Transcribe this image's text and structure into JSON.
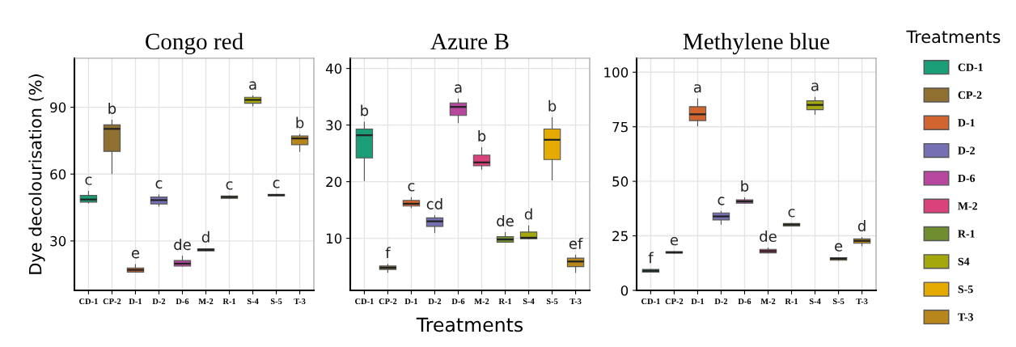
{
  "chart_data": [
    {
      "type": "box",
      "title": "Congo red",
      "ylabel": "Dye decolourisation (%)",
      "categories": [
        "CD-1",
        "CP-2",
        "D-1",
        "D-2",
        "D-6",
        "M-2",
        "R-1",
        "S-4",
        "S-5",
        "T-3"
      ],
      "ylim": [
        7.8,
        112
      ],
      "yticks": [
        30,
        60,
        90
      ],
      "grid": true,
      "legend": false,
      "series": [
        {
          "color": "#1b9e77",
          "boxes": [
            {
              "low": 47,
              "q1": 47.4,
              "median": 48.6,
              "q3": 50.4,
              "high": 52.3
            },
            null,
            null,
            null,
            null,
            null,
            null,
            null,
            null,
            null
          ],
          "value_labels": [
            "c",
            null,
            null,
            null,
            null,
            null,
            null,
            null,
            null,
            null
          ]
        },
        {
          "color": "#8f7030",
          "boxes": [
            null,
            {
              "low": 60.2,
              "q1": 70.2,
              "median": 80.3,
              "q3": 82.1,
              "high": 84.2
            },
            null,
            null,
            null,
            null,
            null,
            null,
            null,
            null
          ],
          "value_labels": [
            null,
            "b",
            null,
            null,
            null,
            null,
            null,
            null,
            null,
            null
          ]
        },
        {
          "color": "#d2652f",
          "boxes": [
            null,
            null,
            {
              "low": 16,
              "q1": 16,
              "median": 17,
              "q3": 17.9,
              "high": 19.4
            },
            null,
            null,
            null,
            null,
            null,
            null,
            null
          ],
          "value_labels": [
            null,
            null,
            "e",
            null,
            null,
            null,
            null,
            null,
            null,
            null
          ]
        },
        {
          "color": "#7570b3",
          "boxes": [
            null,
            null,
            null,
            {
              "low": 45.6,
              "q1": 46.6,
              "median": 48.3,
              "q3": 49.7,
              "high": 50.7
            },
            null,
            null,
            null,
            null,
            null,
            null
          ],
          "value_labels": [
            null,
            null,
            null,
            "c",
            null,
            null,
            null,
            null,
            null,
            null
          ]
        },
        {
          "color": "#b7469e",
          "boxes": [
            null,
            null,
            null,
            null,
            {
              "low": 18.7,
              "q1": 18.7,
              "median": 19.8,
              "q3": 21.2,
              "high": 23.1
            },
            null,
            null,
            null,
            null,
            null
          ],
          "value_labels": [
            null,
            null,
            null,
            null,
            "de",
            null,
            null,
            null,
            null,
            null
          ]
        },
        {
          "color": "#d9427a",
          "boxes": [
            null,
            null,
            null,
            null,
            null,
            {
              "low": 25.5,
              "q1": 25.5,
              "median": 26,
              "q3": 26.5,
              "high": 26.5
            },
            null,
            null,
            null,
            null
          ],
          "value_labels": [
            null,
            null,
            null,
            null,
            null,
            "d",
            null,
            null,
            null,
            null
          ]
        },
        {
          "color": "#6f8e30",
          "boxes": [
            null,
            null,
            null,
            null,
            null,
            null,
            {
              "low": 49.1,
              "q1": 49.1,
              "median": 49.7,
              "q3": 50.2,
              "high": 50.2
            },
            null,
            null,
            null
          ],
          "value_labels": [
            null,
            null,
            null,
            null,
            null,
            null,
            "c",
            null,
            null,
            null
          ]
        },
        {
          "color": "#a5a80c",
          "boxes": [
            null,
            null,
            null,
            null,
            null,
            null,
            null,
            {
              "low": 90.6,
              "q1": 91.8,
              "median": 93.3,
              "q3": 94.5,
              "high": 95.1
            },
            null,
            null
          ],
          "value_labels": [
            null,
            null,
            null,
            null,
            null,
            null,
            null,
            "a",
            null,
            null
          ]
        },
        {
          "color": "#e6ab02",
          "boxes": [
            null,
            null,
            null,
            null,
            null,
            null,
            null,
            null,
            {
              "low": 50.2,
              "q1": 50.2,
              "median": 50.6,
              "q3": 50.9,
              "high": 50.9
            },
            null
          ],
          "value_labels": [
            null,
            null,
            null,
            null,
            null,
            null,
            null,
            null,
            "c",
            null
          ]
        },
        {
          "color": "#b8861b",
          "boxes": [
            null,
            null,
            null,
            null,
            null,
            null,
            null,
            null,
            null,
            {
              "low": 70.2,
              "q1": 73.2,
              "median": 76,
              "q3": 77.1,
              "high": 77.8
            }
          ],
          "value_labels": [
            null,
            null,
            null,
            null,
            null,
            null,
            null,
            null,
            null,
            "b"
          ]
        }
      ]
    },
    {
      "type": "box",
      "title": "Azure B",
      "xlabel": "Treatments",
      "categories": [
        "CD-1",
        "CP-2",
        "D-1",
        "D-2",
        "D-6",
        "M-2",
        "R-1",
        "S-4",
        "S-5",
        "T-3"
      ],
      "ylim": [
        0.8,
        41.8
      ],
      "yticks": [
        10,
        20,
        30,
        40
      ],
      "grid": true,
      "legend": false,
      "series": [
        {
          "color": "#1b9e77",
          "boxes": [
            {
              "low": 20.2,
              "q1": 24.2,
              "median": 28.2,
              "q3": 29.3,
              "high": 30.5
            },
            null,
            null,
            null,
            null,
            null,
            null,
            null,
            null,
            null
          ],
          "value_labels": [
            "b",
            null,
            null,
            null,
            null,
            null,
            null,
            null,
            null,
            null
          ]
        },
        {
          "color": "#8f7030",
          "boxes": [
            null,
            {
              "low": 4,
              "q1": 4.5,
              "median": 4.8,
              "q3": 5.1,
              "high": 5.4
            },
            null,
            null,
            null,
            null,
            null,
            null,
            null,
            null
          ],
          "value_labels": [
            null,
            "f",
            null,
            null,
            null,
            null,
            null,
            null,
            null,
            null
          ]
        },
        {
          "color": "#d2652f",
          "boxes": [
            null,
            null,
            {
              "low": 15.4,
              "q1": 15.7,
              "median": 16.1,
              "q3": 16.7,
              "high": 17.2
            },
            null,
            null,
            null,
            null,
            null,
            null,
            null
          ],
          "value_labels": [
            null,
            null,
            "c",
            null,
            null,
            null,
            null,
            null,
            null,
            null
          ]
        },
        {
          "color": "#7570b3",
          "boxes": [
            null,
            null,
            null,
            {
              "low": 11,
              "q1": 12.1,
              "median": 13,
              "q3": 13.6,
              "high": 14
            },
            null,
            null,
            null,
            null,
            null,
            null
          ],
          "value_labels": [
            null,
            null,
            null,
            "cd",
            null,
            null,
            null,
            null,
            null,
            null
          ]
        },
        {
          "color": "#b7469e",
          "boxes": [
            null,
            null,
            null,
            null,
            {
              "low": 30.4,
              "q1": 31.7,
              "median": 33.2,
              "q3": 33.9,
              "high": 34.6
            },
            null,
            null,
            null,
            null,
            null
          ],
          "value_labels": [
            null,
            null,
            null,
            null,
            "a",
            null,
            null,
            null,
            null,
            null
          ]
        },
        {
          "color": "#d9427a",
          "boxes": [
            null,
            null,
            null,
            null,
            null,
            {
              "low": 22.2,
              "q1": 22.8,
              "median": 23.4,
              "q3": 24.7,
              "high": 26
            },
            null,
            null,
            null,
            null
          ],
          "value_labels": [
            null,
            null,
            null,
            null,
            null,
            "b",
            null,
            null,
            null,
            null
          ]
        },
        {
          "color": "#6f8e30",
          "boxes": [
            null,
            null,
            null,
            null,
            null,
            null,
            {
              "low": 9.3,
              "q1": 9.3,
              "median": 9.8,
              "q3": 10.3,
              "high": 11
            },
            null,
            null,
            null
          ],
          "value_labels": [
            null,
            null,
            null,
            null,
            null,
            null,
            "de",
            null,
            null,
            null
          ]
        },
        {
          "color": "#a5a80c",
          "boxes": [
            null,
            null,
            null,
            null,
            null,
            null,
            null,
            {
              "low": 9.9,
              "q1": 9.9,
              "median": 10.1,
              "q3": 11.1,
              "high": 12.2
            },
            null,
            null
          ],
          "value_labels": [
            null,
            null,
            null,
            null,
            null,
            null,
            null,
            "d",
            null,
            null
          ]
        },
        {
          "color": "#e6ab02",
          "boxes": [
            null,
            null,
            null,
            null,
            null,
            null,
            null,
            null,
            {
              "low": 20.3,
              "q1": 23.9,
              "median": 27.4,
              "q3": 29.3,
              "high": 31.3
            },
            null
          ],
          "value_labels": [
            null,
            null,
            null,
            null,
            null,
            null,
            null,
            null,
            "b",
            null
          ]
        },
        {
          "color": "#b8861b",
          "boxes": [
            null,
            null,
            null,
            null,
            null,
            null,
            null,
            null,
            null,
            {
              "low": 4,
              "q1": 5,
              "median": 5.9,
              "q3": 6.5,
              "high": 7
            }
          ],
          "value_labels": [
            null,
            null,
            null,
            null,
            null,
            null,
            null,
            null,
            null,
            "ef"
          ]
        }
      ]
    },
    {
      "type": "box",
      "title": "Methylene blue",
      "legend_title": "Treatments",
      "categories": [
        "CD-1",
        "CP-2",
        "D-1",
        "D-2",
        "D-6",
        "M-2",
        "R-1",
        "S-4",
        "S-5",
        "T-3"
      ],
      "ylim": [
        0,
        106.4
      ],
      "yticks": [
        0,
        25,
        50,
        75,
        100
      ],
      "grid": true,
      "legend": "right",
      "series": [
        {
          "name": "CD-1",
          "color": "#1b9e77",
          "boxes": [
            {
              "low": 8.4,
              "q1": 8.4,
              "median": 9,
              "q3": 9.6,
              "high": 9.6
            },
            null,
            null,
            null,
            null,
            null,
            null,
            null,
            null,
            null
          ],
          "value_labels": [
            "f",
            null,
            null,
            null,
            null,
            null,
            null,
            null,
            null,
            null
          ]
        },
        {
          "name": "CP-2",
          "color": "#8f7030",
          "boxes": [
            null,
            {
              "low": 17.1,
              "q1": 17.1,
              "median": 17.4,
              "q3": 17.8,
              "high": 17.8
            },
            null,
            null,
            null,
            null,
            null,
            null,
            null,
            null
          ],
          "value_labels": [
            null,
            "e",
            null,
            null,
            null,
            null,
            null,
            null,
            null,
            null
          ]
        },
        {
          "name": "D-1",
          "color": "#d2652f",
          "boxes": [
            null,
            null,
            {
              "low": 75.4,
              "q1": 77.8,
              "median": 80.7,
              "q3": 84.2,
              "high": 87.8
            },
            null,
            null,
            null,
            null,
            null,
            null,
            null
          ],
          "value_labels": [
            null,
            null,
            "a",
            null,
            null,
            null,
            null,
            null,
            null,
            null
          ]
        },
        {
          "name": "D-2",
          "color": "#7570b3",
          "boxes": [
            null,
            null,
            null,
            {
              "low": 30.3,
              "q1": 32.3,
              "median": 33.9,
              "q3": 35.5,
              "high": 36.2
            },
            null,
            null,
            null,
            null,
            null,
            null
          ],
          "value_labels": [
            null,
            null,
            null,
            "c",
            null,
            null,
            null,
            null,
            null,
            null
          ]
        },
        {
          "name": "D-6",
          "color": "#b7469e",
          "boxes": [
            null,
            null,
            null,
            null,
            {
              "low": 40,
              "q1": 40,
              "median": 40.8,
              "q3": 41.5,
              "high": 42.4
            },
            null,
            null,
            null,
            null,
            null
          ],
          "value_labels": [
            null,
            null,
            null,
            null,
            "b",
            null,
            null,
            null,
            null,
            null
          ]
        },
        {
          "name": "M-2",
          "color": "#d9427a",
          "boxes": [
            null,
            null,
            null,
            null,
            null,
            {
              "low": 17.2,
              "q1": 17.2,
              "median": 18,
              "q3": 18.8,
              "high": 19.4
            },
            null,
            null,
            null,
            null
          ],
          "value_labels": [
            null,
            null,
            null,
            null,
            null,
            "de",
            null,
            null,
            null,
            null
          ]
        },
        {
          "name": "R-1",
          "color": "#6f8e30",
          "boxes": [
            null,
            null,
            null,
            null,
            null,
            null,
            {
              "low": 29.5,
              "q1": 29.5,
              "median": 30.2,
              "q3": 30.7,
              "high": 30.7
            },
            null,
            null,
            null
          ],
          "value_labels": [
            null,
            null,
            null,
            null,
            null,
            null,
            "c",
            null,
            null,
            null
          ]
        },
        {
          "name": "S4",
          "color": "#a5a80c",
          "boxes": [
            null,
            null,
            null,
            null,
            null,
            null,
            null,
            {
              "low": 80.7,
              "q1": 82.8,
              "median": 85,
              "q3": 86.9,
              "high": 88.5
            },
            null,
            null
          ],
          "value_labels": [
            null,
            null,
            null,
            null,
            null,
            null,
            null,
            "a",
            null,
            null
          ]
        },
        {
          "name": "S-5",
          "color": "#e6ab02",
          "boxes": [
            null,
            null,
            null,
            null,
            null,
            null,
            null,
            null,
            {
              "low": 13.8,
              "q1": 13.8,
              "median": 14.5,
              "q3": 15,
              "high": 15
            },
            null
          ],
          "value_labels": [
            null,
            null,
            null,
            null,
            null,
            null,
            null,
            null,
            "e",
            null
          ]
        },
        {
          "name": "T-3",
          "color": "#b8861b",
          "boxes": [
            null,
            null,
            null,
            null,
            null,
            null,
            null,
            null,
            null,
            {
              "low": 20.4,
              "q1": 21.6,
              "median": 22.7,
              "q3": 23.6,
              "high": 24.2
            }
          ],
          "value_labels": [
            null,
            null,
            null,
            null,
            null,
            null,
            null,
            null,
            null,
            "d"
          ]
        }
      ]
    }
  ]
}
